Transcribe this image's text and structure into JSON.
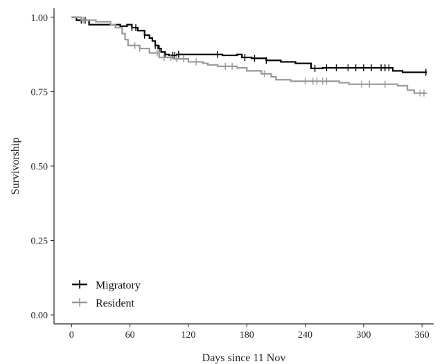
{
  "chart_data": {
    "type": "line",
    "xlabel": "Days since 11 Nov",
    "ylabel": "Survivorship",
    "xlim": [
      -18,
      372
    ],
    "ylim": [
      -0.03,
      1.03
    ],
    "xticks": [
      "0",
      "60",
      "120",
      "180",
      "240",
      "300",
      "360"
    ],
    "xtick_values": [
      0,
      60,
      120,
      180,
      240,
      300,
      360
    ],
    "yticks": [
      "0.00",
      "0.25",
      "0.50",
      "0.75",
      "1.00"
    ],
    "ytick_values": [
      0,
      0.25,
      0.5,
      0.75,
      1.0
    ],
    "grid": false,
    "legend_position": "bottom-left",
    "series": [
      {
        "name": "Migratory",
        "color": "#000000",
        "steps": [
          [
            0,
            1.0
          ],
          [
            5,
            0.99
          ],
          [
            18,
            0.975
          ],
          [
            48,
            0.975
          ],
          [
            50,
            0.97
          ],
          [
            57,
            0.975
          ],
          [
            62,
            0.965
          ],
          [
            68,
            0.955
          ],
          [
            75,
            0.94
          ],
          [
            80,
            0.93
          ],
          [
            83,
            0.92
          ],
          [
            86,
            0.905
          ],
          [
            89,
            0.895
          ],
          [
            92,
            0.883
          ],
          [
            96,
            0.875
          ],
          [
            100,
            0.872
          ],
          [
            108,
            0.875
          ],
          [
            155,
            0.872
          ],
          [
            170,
            0.875
          ],
          [
            175,
            0.865
          ],
          [
            185,
            0.862
          ],
          [
            200,
            0.855
          ],
          [
            215,
            0.85
          ],
          [
            230,
            0.845
          ],
          [
            246,
            0.828
          ],
          [
            258,
            0.83
          ],
          [
            330,
            0.82
          ],
          [
            340,
            0.815
          ],
          [
            365,
            0.815
          ]
        ],
        "censored_x": [
          10,
          14,
          62,
          66,
          75,
          86,
          90,
          96,
          104,
          106,
          110,
          150,
          178,
          188,
          200,
          250,
          262,
          272,
          284,
          292,
          300,
          308,
          318,
          322,
          326,
          364
        ]
      },
      {
        "name": "Resident",
        "color": "#999999",
        "steps": [
          [
            0,
            1.0
          ],
          [
            10,
            0.99
          ],
          [
            25,
            0.985
          ],
          [
            40,
            0.975
          ],
          [
            45,
            0.965
          ],
          [
            52,
            0.945
          ],
          [
            55,
            0.925
          ],
          [
            58,
            0.905
          ],
          [
            70,
            0.895
          ],
          [
            80,
            0.88
          ],
          [
            90,
            0.865
          ],
          [
            105,
            0.86
          ],
          [
            120,
            0.85
          ],
          [
            135,
            0.845
          ],
          [
            140,
            0.84
          ],
          [
            150,
            0.835
          ],
          [
            170,
            0.83
          ],
          [
            180,
            0.82
          ],
          [
            195,
            0.81
          ],
          [
            205,
            0.8
          ],
          [
            210,
            0.79
          ],
          [
            225,
            0.785
          ],
          [
            260,
            0.785
          ],
          [
            275,
            0.78
          ],
          [
            285,
            0.775
          ],
          [
            335,
            0.77
          ],
          [
            345,
            0.755
          ],
          [
            352,
            0.745
          ],
          [
            365,
            0.745
          ]
        ],
        "censored_x": [
          12,
          65,
          70,
          88,
          95,
          102,
          108,
          115,
          128,
          158,
          165,
          198,
          240,
          248,
          252,
          258,
          262,
          298,
          306,
          322,
          358,
          362
        ]
      }
    ]
  }
}
